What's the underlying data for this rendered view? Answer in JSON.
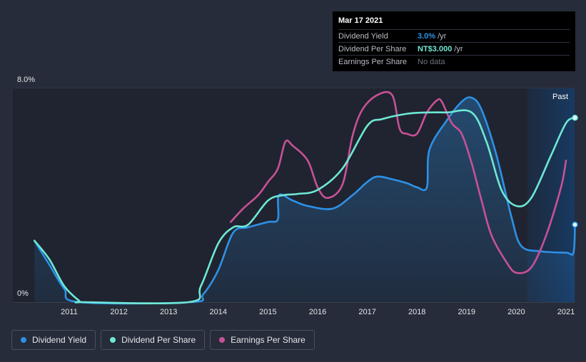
{
  "tooltip": {
    "date": "Mar 17 2021",
    "rows": [
      {
        "label": "Dividend Yield",
        "value": "3.0%",
        "unit": "/yr",
        "color": "#2e91e6"
      },
      {
        "label": "Dividend Per Share",
        "value": "NT$3.000",
        "unit": "/yr",
        "color": "#6ee8d5"
      },
      {
        "label": "Earnings Per Share",
        "value": "No data",
        "unit": "",
        "color": "#6e7380"
      }
    ]
  },
  "past_label": "Past",
  "legend": [
    {
      "label": "Dividend Yield",
      "color": "#2e91e6"
    },
    {
      "label": "Dividend Per Share",
      "color": "#6ee8d5"
    },
    {
      "label": "Earnings Per Share",
      "color": "#c85196"
    }
  ],
  "chart_data": {
    "type": "line",
    "x_ticks": [
      "2011",
      "2012",
      "2013",
      "2014",
      "2015",
      "2016",
      "2017",
      "2018",
      "2019",
      "2020",
      "2021"
    ],
    "y_ticks": [
      "8.0%",
      "0%"
    ],
    "xlim": [
      2010.3,
      2021.22
    ],
    "ylim": [
      0,
      8
    ],
    "series": [
      {
        "name": "Dividend Yield",
        "color": "#2e91e6",
        "fill": true,
        "points": [
          [
            2010.3,
            2.3
          ],
          [
            2010.6,
            1.4
          ],
          [
            2010.9,
            0.5
          ],
          [
            2011.2,
            0
          ],
          [
            2013.45,
            0
          ],
          [
            2013.7,
            0.3
          ],
          [
            2014.0,
            1.2
          ],
          [
            2014.3,
            2.6
          ],
          [
            2014.6,
            2.8
          ],
          [
            2015.0,
            3.0
          ],
          [
            2015.2,
            3.1
          ],
          [
            2015.22,
            4.0
          ],
          [
            2015.5,
            3.8
          ],
          [
            2015.8,
            3.6
          ],
          [
            2016.3,
            3.5
          ],
          [
            2016.7,
            4.0
          ],
          [
            2017.0,
            4.5
          ],
          [
            2017.2,
            4.7
          ],
          [
            2017.5,
            4.6
          ],
          [
            2017.8,
            4.45
          ],
          [
            2018.0,
            4.3
          ],
          [
            2018.2,
            4.3
          ],
          [
            2018.25,
            5.7
          ],
          [
            2018.6,
            6.8
          ],
          [
            2018.9,
            7.5
          ],
          [
            2019.1,
            7.65
          ],
          [
            2019.3,
            7.2
          ],
          [
            2019.6,
            5.5
          ],
          [
            2019.9,
            3.2
          ],
          [
            2020.1,
            2.1
          ],
          [
            2020.5,
            1.9
          ],
          [
            2021.0,
            1.85
          ],
          [
            2021.15,
            1.85
          ],
          [
            2021.18,
            2.9
          ]
        ]
      },
      {
        "name": "Dividend Per Share",
        "color": "#6ee8d5",
        "fill": false,
        "points": [
          [
            2010.3,
            2.3
          ],
          [
            2010.6,
            1.6
          ],
          [
            2010.9,
            0.6
          ],
          [
            2011.2,
            0.05
          ],
          [
            2011.3,
            0
          ],
          [
            2013.4,
            0
          ],
          [
            2013.65,
            0.6
          ],
          [
            2014.0,
            2.2
          ],
          [
            2014.3,
            2.8
          ],
          [
            2014.6,
            2.9
          ],
          [
            2015.0,
            3.8
          ],
          [
            2015.3,
            4.0
          ],
          [
            2015.6,
            4.05
          ],
          [
            2016.0,
            4.2
          ],
          [
            2016.5,
            5.0
          ],
          [
            2017.0,
            6.6
          ],
          [
            2017.3,
            6.85
          ],
          [
            2017.8,
            7.05
          ],
          [
            2018.2,
            7.1
          ],
          [
            2018.6,
            7.1
          ],
          [
            2019.1,
            7.1
          ],
          [
            2019.4,
            6.0
          ],
          [
            2019.7,
            4.2
          ],
          [
            2020.0,
            3.6
          ],
          [
            2020.3,
            3.9
          ],
          [
            2020.7,
            5.5
          ],
          [
            2021.0,
            6.7
          ],
          [
            2021.18,
            6.9
          ]
        ]
      },
      {
        "name": "Earnings Per Share",
        "color": "#c85196",
        "fill": false,
        "points": [
          [
            2014.25,
            3.0
          ],
          [
            2014.5,
            3.5
          ],
          [
            2014.8,
            4.0
          ],
          [
            2015.0,
            4.5
          ],
          [
            2015.2,
            5.0
          ],
          [
            2015.35,
            6.0
          ],
          [
            2015.5,
            5.85
          ],
          [
            2015.8,
            5.3
          ],
          [
            2016.0,
            4.3
          ],
          [
            2016.2,
            3.9
          ],
          [
            2016.5,
            4.4
          ],
          [
            2016.7,
            6.2
          ],
          [
            2016.9,
            7.2
          ],
          [
            2017.2,
            7.75
          ],
          [
            2017.5,
            7.75
          ],
          [
            2017.65,
            6.5
          ],
          [
            2017.8,
            6.3
          ],
          [
            2018.0,
            6.3
          ],
          [
            2018.2,
            7.1
          ],
          [
            2018.4,
            7.55
          ],
          [
            2018.5,
            7.5
          ],
          [
            2018.7,
            6.7
          ],
          [
            2018.9,
            6.3
          ],
          [
            2019.1,
            5.2
          ],
          [
            2019.3,
            3.8
          ],
          [
            2019.5,
            2.5
          ],
          [
            2019.8,
            1.5
          ],
          [
            2020.0,
            1.1
          ],
          [
            2020.3,
            1.3
          ],
          [
            2020.6,
            2.5
          ],
          [
            2020.9,
            4.3
          ],
          [
            2021.0,
            5.3
          ]
        ]
      }
    ],
    "highlight_x": 2021.18
  }
}
